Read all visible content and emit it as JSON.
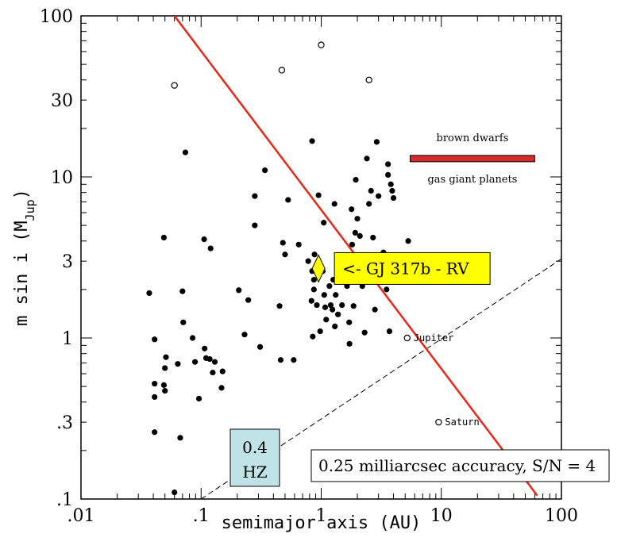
{
  "chart_data": {
    "type": "scatter",
    "xlabel": "semimajor axis (AU)",
    "ylabel_main": "m sin i (M",
    "ylabel_sub": "Jup",
    "ylabel_close": ")",
    "xscale": "log",
    "yscale": "log",
    "xlim": [
      0.01,
      100
    ],
    "ylim": [
      0.1,
      100
    ],
    "x_ticks": [
      {
        "v": 0.01,
        "label": ".01"
      },
      {
        "v": 0.1,
        "label": ".1"
      },
      {
        "v": 1,
        "label": "1"
      },
      {
        "v": 10,
        "label": "10"
      },
      {
        "v": 100,
        "label": "100"
      }
    ],
    "y_ticks": [
      {
        "v": 0.1,
        "label": ".1"
      },
      {
        "v": 0.3,
        "label": ".3"
      },
      {
        "v": 1,
        "label": "1"
      },
      {
        "v": 3,
        "label": "3"
      },
      {
        "v": 10,
        "label": "10"
      },
      {
        "v": 30,
        "label": "30"
      },
      {
        "v": 100,
        "label": "100"
      }
    ],
    "filled_points": [
      [
        0.037,
        1.9
      ],
      [
        0.041,
        0.98
      ],
      [
        0.041,
        0.52
      ],
      [
        0.041,
        0.43
      ],
      [
        0.041,
        0.26
      ],
      [
        0.049,
        4.2
      ],
      [
        0.049,
        0.51
      ],
      [
        0.05,
        0.47
      ],
      [
        0.05,
        0.65
      ],
      [
        0.051,
        0.76
      ],
      [
        0.06,
        0.11
      ],
      [
        0.064,
        0.69
      ],
      [
        0.067,
        0.24
      ],
      [
        0.07,
        1.95
      ],
      [
        0.071,
        1.25
      ],
      [
        0.074,
        14.2
      ],
      [
        0.085,
        1.0
      ],
      [
        0.089,
        0.71
      ],
      [
        0.096,
        0.42
      ],
      [
        0.106,
        4.1
      ],
      [
        0.107,
        0.86
      ],
      [
        0.11,
        0.75
      ],
      [
        0.118,
        0.74
      ],
      [
        0.12,
        3.6
      ],
      [
        0.125,
        0.61
      ],
      [
        0.13,
        0.71
      ],
      [
        0.148,
        0.49
      ],
      [
        0.151,
        0.62
      ],
      [
        0.206,
        1.98
      ],
      [
        0.23,
        1.05
      ],
      [
        0.247,
        1.72
      ],
      [
        0.28,
        7.6
      ],
      [
        0.28,
        5.0
      ],
      [
        0.31,
        0.88
      ],
      [
        0.34,
        11.0
      ],
      [
        0.45,
        1.58
      ],
      [
        0.46,
        0.73
      ],
      [
        0.48,
        3.9
      ],
      [
        0.5,
        3.3
      ],
      [
        0.53,
        7.2
      ],
      [
        0.59,
        0.73
      ],
      [
        0.65,
        3.8
      ],
      [
        0.78,
        3.0
      ],
      [
        0.83,
        1.7
      ],
      [
        0.84,
        16.7
      ],
      [
        0.84,
        2.6
      ],
      [
        0.85,
        1.02
      ],
      [
        0.87,
        2.3
      ],
      [
        0.87,
        2.0
      ],
      [
        0.88,
        3.3
      ],
      [
        0.92,
        1.6
      ],
      [
        0.95,
        7.7
      ],
      [
        0.98,
        1.1
      ],
      [
        1.03,
        2.6
      ],
      [
        1.05,
        5.2
      ],
      [
        1.06,
        1.85
      ],
      [
        1.08,
        1.55
      ],
      [
        1.1,
        1.3
      ],
      [
        1.17,
        2.1
      ],
      [
        1.2,
        1.6
      ],
      [
        1.24,
        1.5
      ],
      [
        1.26,
        2.3
      ],
      [
        1.29,
        6.8
      ],
      [
        1.3,
        1.18
      ],
      [
        1.32,
        1.85
      ],
      [
        1.38,
        1.4
      ],
      [
        1.43,
        3.1
      ],
      [
        1.49,
        1.6
      ],
      [
        1.57,
        2.9
      ],
      [
        1.64,
        2.1
      ],
      [
        1.71,
        1.25
      ],
      [
        1.72,
        0.92
      ],
      [
        1.79,
        6.3
      ],
      [
        1.81,
        3.8
      ],
      [
        1.86,
        1.58
      ],
      [
        1.92,
        4.5
      ],
      [
        1.94,
        9.6
      ],
      [
        2.0,
        5.5
      ],
      [
        2.05,
        2.35
      ],
      [
        2.1,
        4.3
      ],
      [
        2.2,
        2.1
      ],
      [
        2.3,
        1.08
      ],
      [
        2.4,
        13.0
      ],
      [
        2.5,
        6.8
      ],
      [
        2.6,
        8.2
      ],
      [
        2.7,
        2.7
      ],
      [
        2.7,
        4.2
      ],
      [
        2.8,
        1.5
      ],
      [
        2.9,
        16.5
      ],
      [
        3.0,
        7.6
      ],
      [
        3.3,
        3.4
      ],
      [
        3.4,
        3.1
      ],
      [
        3.5,
        2.0
      ],
      [
        3.6,
        10.3
      ],
      [
        3.7,
        1.1
      ],
      [
        3.8,
        9.0
      ],
      [
        3.9,
        8.2
      ],
      [
        4.0,
        7.4
      ],
      [
        3.6,
        12.0
      ],
      [
        5.3,
        4.0
      ]
    ],
    "open_points": [
      [
        0.06,
        37
      ],
      [
        0.47,
        46
      ],
      [
        1.0,
        66
      ],
      [
        2.5,
        40
      ]
    ],
    "planets": [
      {
        "name": "Jupiter",
        "a": 5.2,
        "m": 1.0
      },
      {
        "name": "Saturn",
        "a": 9.5,
        "m": 0.3
      }
    ],
    "highlight": {
      "name": "GJ 317b",
      "a": 0.95,
      "m": 2.7,
      "label": "<- GJ 317b - RV"
    },
    "red_line": [
      [
        0.06,
        105
      ],
      [
        63,
        0.105
      ]
    ],
    "dashed_line": [
      [
        0.1,
        0.1
      ],
      [
        100,
        3.1
      ]
    ],
    "brown_dwarf_bar": {
      "x1": 5.5,
      "x2": 60,
      "y": 13
    },
    "brown_dwarfs_label": "brown dwarfs",
    "gas_giant_label": "gas giant planets",
    "hz_label_line1": "0.4",
    "hz_label_line2": "HZ",
    "accuracy_label": "0.25 milliarcsec accuracy, S/N = 4",
    "colors": {
      "red_line": "#e8261a",
      "bar": "#d62b2b",
      "highlight_box": "#ffff00",
      "hz_box": "#bfe3e6"
    }
  }
}
